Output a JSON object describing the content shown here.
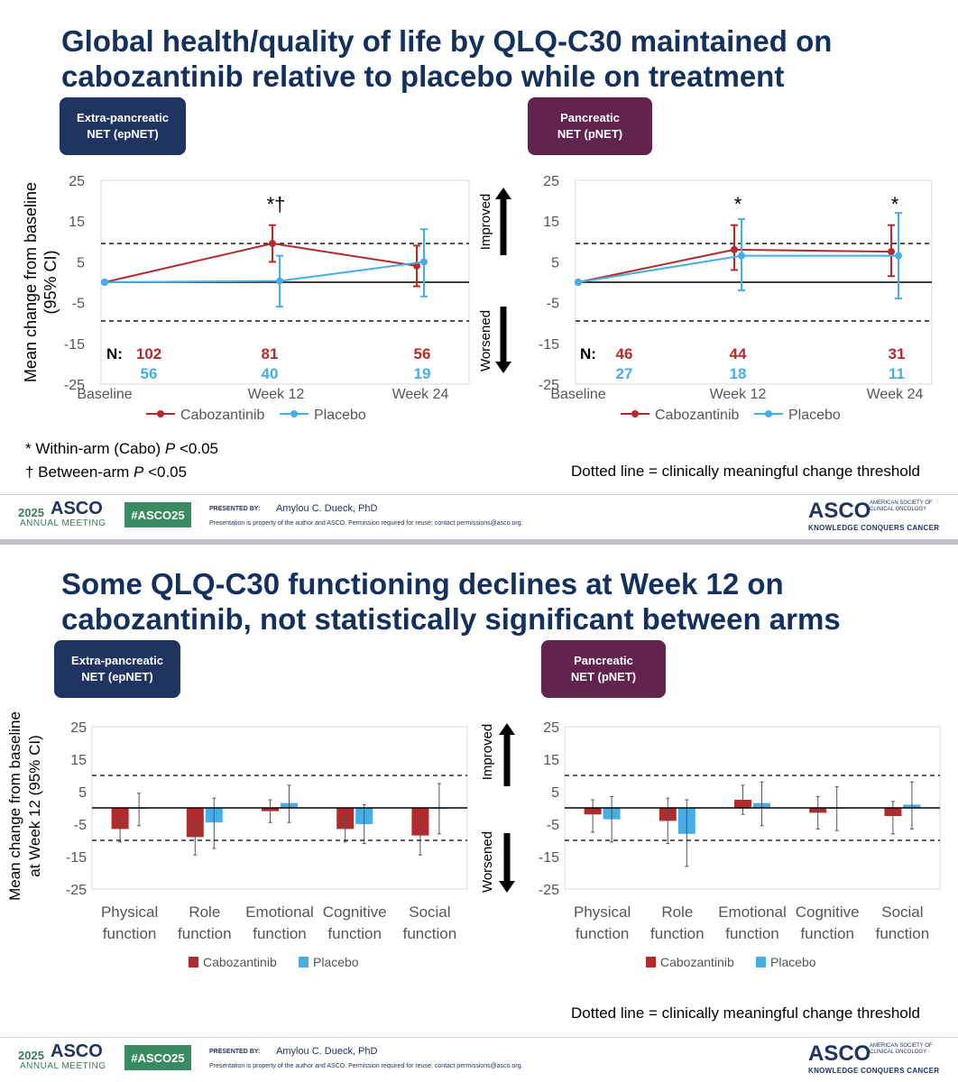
{
  "colors": {
    "cabo": "#b52a2a",
    "placebo": "#46aee6",
    "navy": "#1f3461",
    "plum": "#62234e",
    "title": "#14305c"
  },
  "slide1": {
    "title": "Global health/quality of life by QLQ-C30 maintained on cabozantinib relative to placebo while on treatment",
    "badge_left": "Extra-pancreatic\nNET (epNET)",
    "badge_right": "Pancreatic\nNET (pNET)",
    "footnote1_prefix": "* Within-arm (Cabo) ",
    "footnote1_p": "P",
    "footnote1_suffix": " <0.05",
    "footnote2_prefix": "† Between-arm ",
    "footnote2_p": "P",
    "footnote2_suffix": " <0.05",
    "threshold_note": "Dotted line = clinically meaningful change threshold"
  },
  "slide2": {
    "title": "Some QLQ-C30 functioning declines at Week 12 on cabozantinib, not statistically significant between arms",
    "badge_left": "Extra-pancreatic\nNET (epNET)",
    "badge_right": "Pancreatic\nNET (pNET)",
    "threshold_note": "Dotted line = clinically meaningful change threshold"
  },
  "footer": {
    "year": "2025",
    "asco": "ASCO",
    "meeting": "ANNUAL MEETING",
    "hashtag": "#ASCO25",
    "presented_by": "PRESENTED BY:",
    "presenter": "Amylou C. Dueck, PhD",
    "notice": "Presentation is property of the author and ASCO. Permission required for reuse; contact permissions@asco.org.",
    "society": "AMERICAN SOCIETY OF\nCLINICAL ONCOLOGY",
    "tagline": "KNOWLEDGE CONQUERS CANCER"
  },
  "chart_data": [
    {
      "type": "line",
      "panel": "epNET global health",
      "ylabel": "Mean change from baseline (95% CI)",
      "ylim": [
        -25,
        25
      ],
      "yticks": [
        25,
        15,
        5,
        -5,
        -15,
        -25
      ],
      "categories": [
        "Baseline",
        "Week 12",
        "Week 24"
      ],
      "threshold": [
        9.5,
        -9.5
      ],
      "n_label": "N:",
      "n_cabo": [
        "102",
        "81",
        "56"
      ],
      "n_placebo": [
        "56",
        "40",
        "19"
      ],
      "annotations": [
        "",
        "*†",
        ""
      ],
      "series": [
        {
          "name": "Cabozantinib",
          "values": [
            0,
            9.5,
            4
          ],
          "ci_low": [
            0,
            5,
            -1
          ],
          "ci_high": [
            0,
            14,
            9
          ]
        },
        {
          "name": "Placebo",
          "values": [
            0,
            0.3,
            5
          ],
          "ci_low": [
            0,
            -6,
            -3.5
          ],
          "ci_high": [
            0,
            6.5,
            13
          ]
        }
      ]
    },
    {
      "type": "line",
      "panel": "pNET global health",
      "ylim": [
        -25,
        25
      ],
      "yticks": [
        25,
        15,
        5,
        -5,
        -15,
        -25
      ],
      "categories": [
        "Baseline",
        "Week 12",
        "Week 24"
      ],
      "threshold": [
        9.5,
        -9.5
      ],
      "n_label": "N:",
      "n_cabo": [
        "46",
        "44",
        "31"
      ],
      "n_placebo": [
        "27",
        "18",
        "11"
      ],
      "annotations": [
        "",
        "*",
        "*"
      ],
      "improved_label": "Improved",
      "worsened_label": "Worsened",
      "series": [
        {
          "name": "Cabozantinib",
          "values": [
            0,
            8,
            7.5
          ],
          "ci_low": [
            0,
            3,
            1.5
          ],
          "ci_high": [
            0,
            14,
            14
          ]
        },
        {
          "name": "Placebo",
          "values": [
            0,
            6.5,
            6.5
          ],
          "ci_low": [
            0,
            -2,
            -4
          ],
          "ci_high": [
            0,
            15.5,
            17
          ]
        }
      ]
    },
    {
      "type": "bar",
      "panel": "epNET functioning",
      "ylabel": "Mean change from baseline at Week 12 (95% CI)",
      "ylim": [
        -25,
        25
      ],
      "yticks": [
        25,
        15,
        5,
        -5,
        -15,
        -25
      ],
      "categories": [
        [
          "Physical",
          "function"
        ],
        [
          "Role",
          "function"
        ],
        [
          "Emotional",
          "function"
        ],
        [
          "Cognitive",
          "function"
        ],
        [
          "Social",
          "function"
        ]
      ],
      "threshold": [
        10,
        -10
      ],
      "series": [
        {
          "name": "Cabozantinib",
          "values": [
            -6.5,
            -9,
            -1,
            -6.5,
            -8.5
          ],
          "ci_low": [
            -10.5,
            -14.5,
            -4.5,
            -10.5,
            -14.5
          ],
          "ci_high": [
            -3,
            -3.5,
            2.5,
            -2.5,
            -3
          ]
        },
        {
          "name": "Placebo",
          "values": [
            -0.3,
            -4.5,
            1.5,
            -5,
            0
          ],
          "ci_low": [
            -5.5,
            -12.5,
            -4.5,
            -11,
            -8
          ],
          "ci_high": [
            4.5,
            3,
            7,
            1,
            7.5
          ]
        }
      ]
    },
    {
      "type": "bar",
      "panel": "pNET functioning",
      "ylim": [
        -25,
        25
      ],
      "yticks": [
        25,
        15,
        5,
        -5,
        -15,
        -25
      ],
      "categories": [
        [
          "Physical",
          "function"
        ],
        [
          "Role",
          "function"
        ],
        [
          "Emotional",
          "function"
        ],
        [
          "Cognitive",
          "function"
        ],
        [
          "Social",
          "function"
        ]
      ],
      "threshold": [
        10,
        -10
      ],
      "improved_label": "Improved",
      "worsened_label": "Worsened",
      "series": [
        {
          "name": "Cabozantinib",
          "values": [
            -2,
            -4,
            2.5,
            -1.5,
            -2.5
          ],
          "ci_low": [
            -7.5,
            -11,
            -2,
            -6.5,
            -8
          ],
          "ci_high": [
            2.5,
            3,
            7,
            3.5,
            2
          ]
        },
        {
          "name": "Placebo",
          "values": [
            -3.5,
            -8,
            1.5,
            0,
            1
          ],
          "ci_low": [
            -10.5,
            -18,
            -5.5,
            -7,
            -6.5
          ],
          "ci_high": [
            3.5,
            2.5,
            8,
            6.5,
            8
          ]
        }
      ]
    }
  ]
}
